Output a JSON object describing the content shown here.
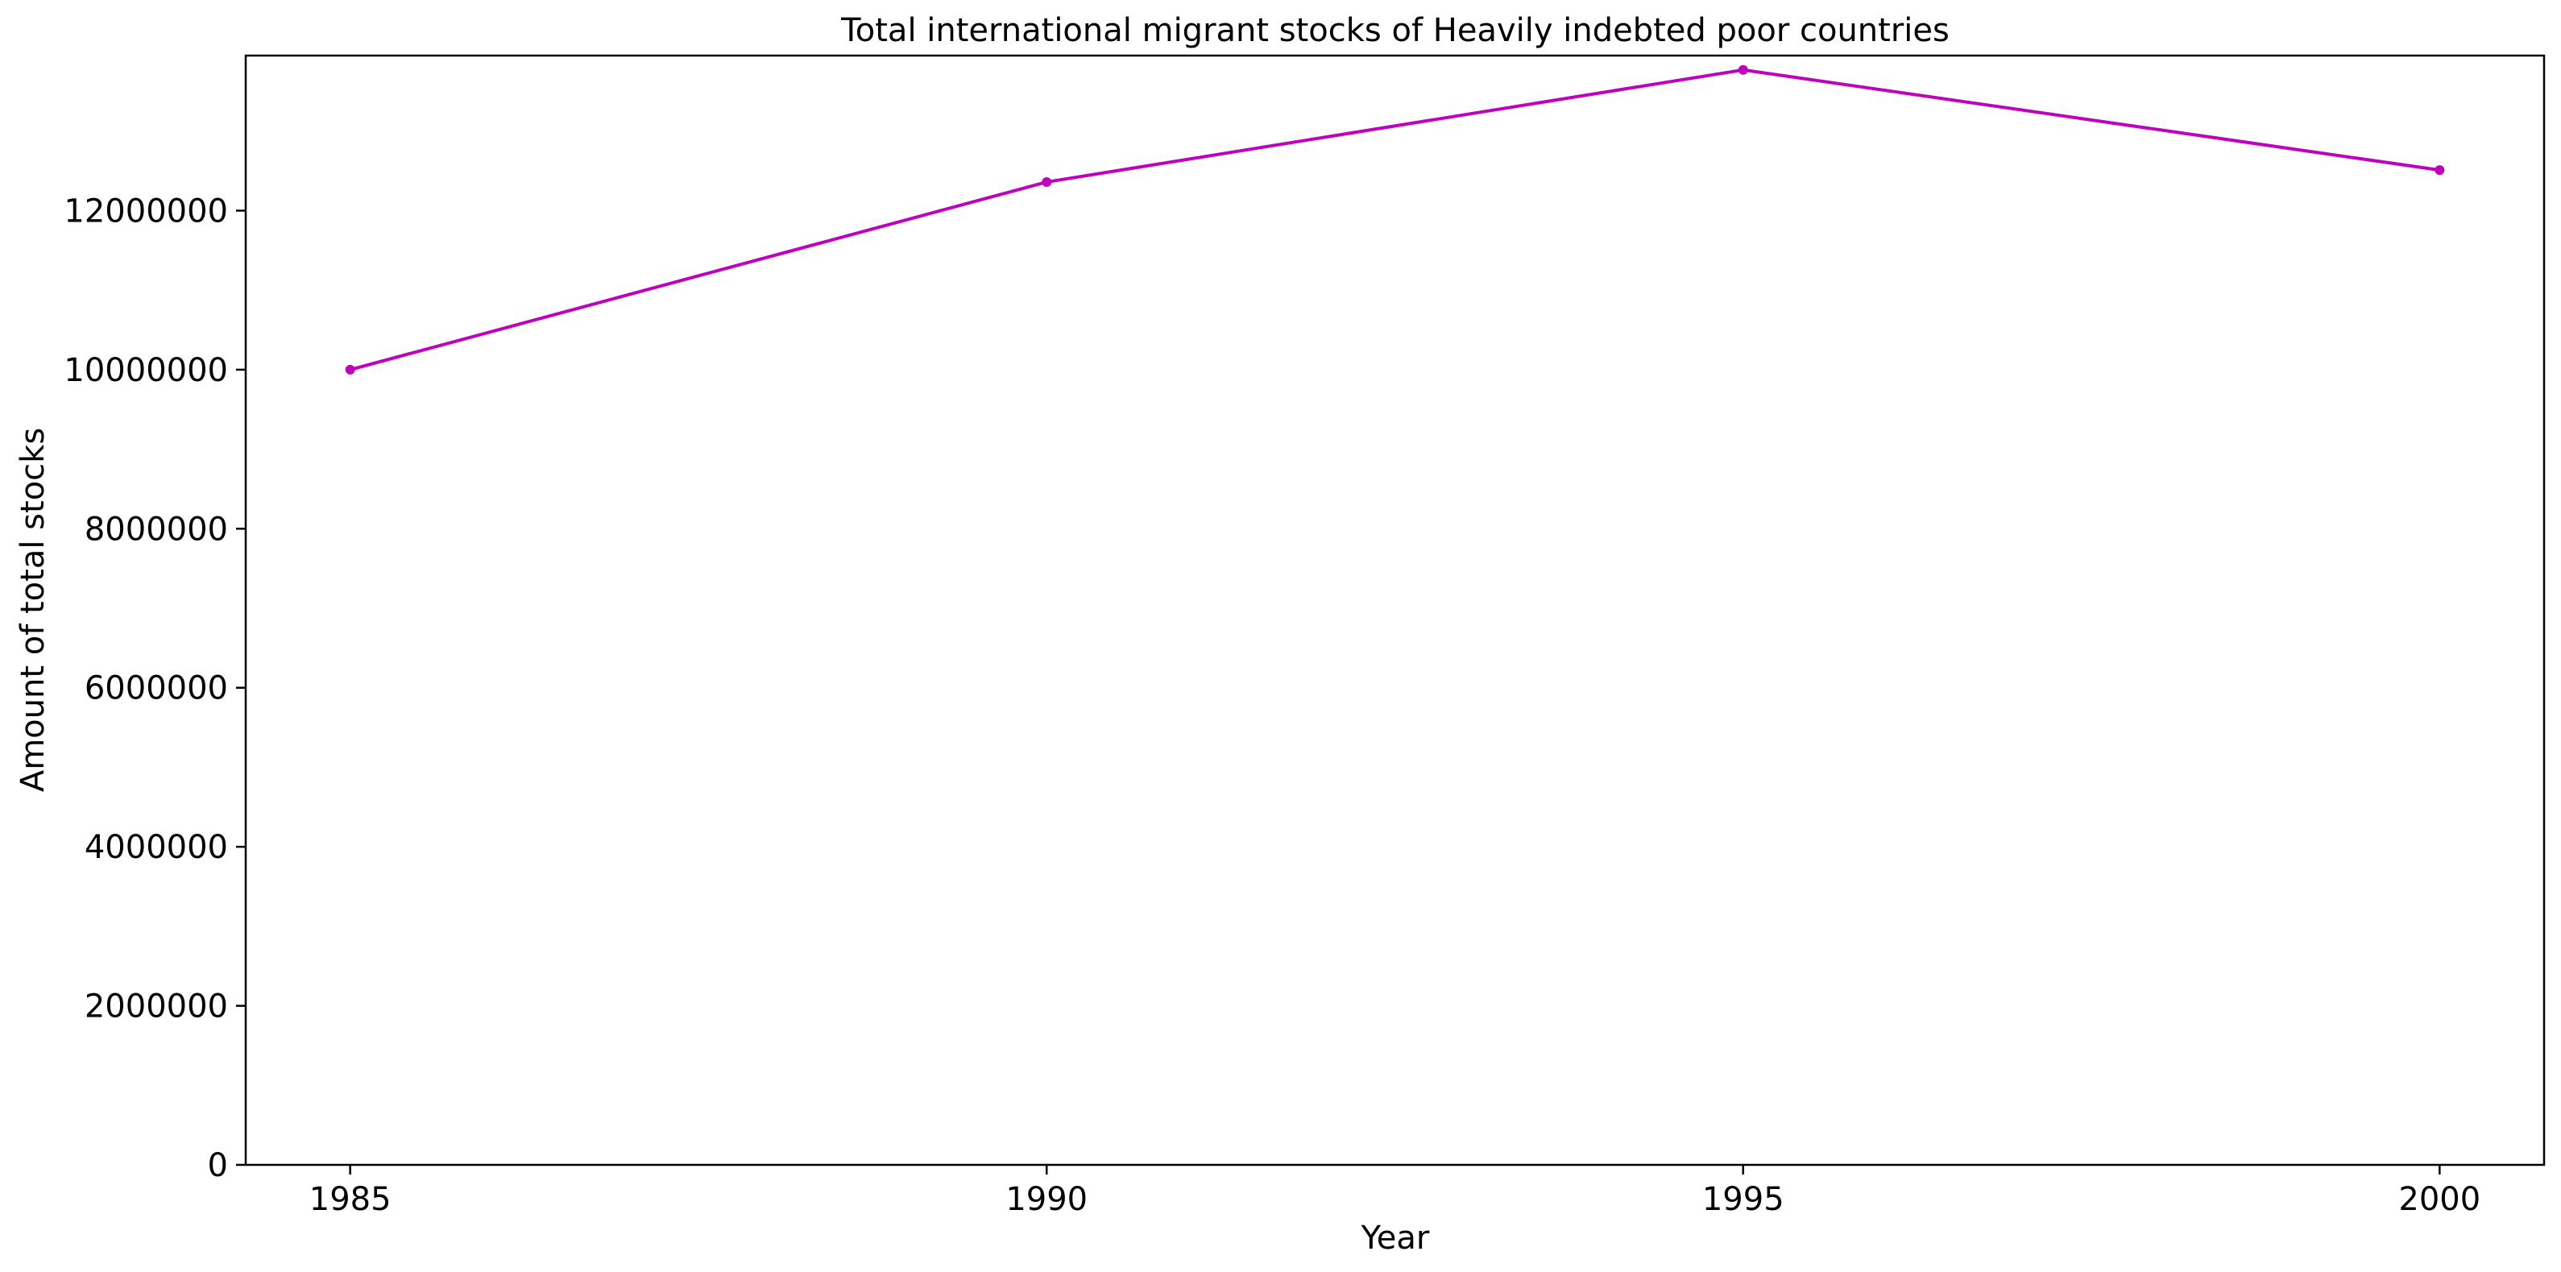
{
  "chart_data": {
    "type": "line",
    "title": "Total international migrant stocks of Heavily indebted poor countries",
    "xlabel": "Year",
    "ylabel": "Amount of total stocks",
    "x": [
      1985,
      1990,
      1995,
      2000
    ],
    "xticks": [
      "1985",
      "1990",
      "1995",
      "2000"
    ],
    "xlim": [
      1984.25,
      2000.75
    ],
    "ylim": [
      0,
      13950000
    ],
    "yticks": [
      0,
      2000000,
      4000000,
      6000000,
      8000000,
      10000000,
      12000000
    ],
    "ytick_labels": [
      "0",
      "2000000",
      "4000000",
      "6000000",
      "8000000",
      "10000000",
      "12000000"
    ],
    "series": [
      {
        "values": [
          10000000,
          12360000,
          13770000,
          12510000
        ],
        "color": "#bf00bf",
        "marker": "circle"
      }
    ],
    "grid": false,
    "legend": "none"
  }
}
